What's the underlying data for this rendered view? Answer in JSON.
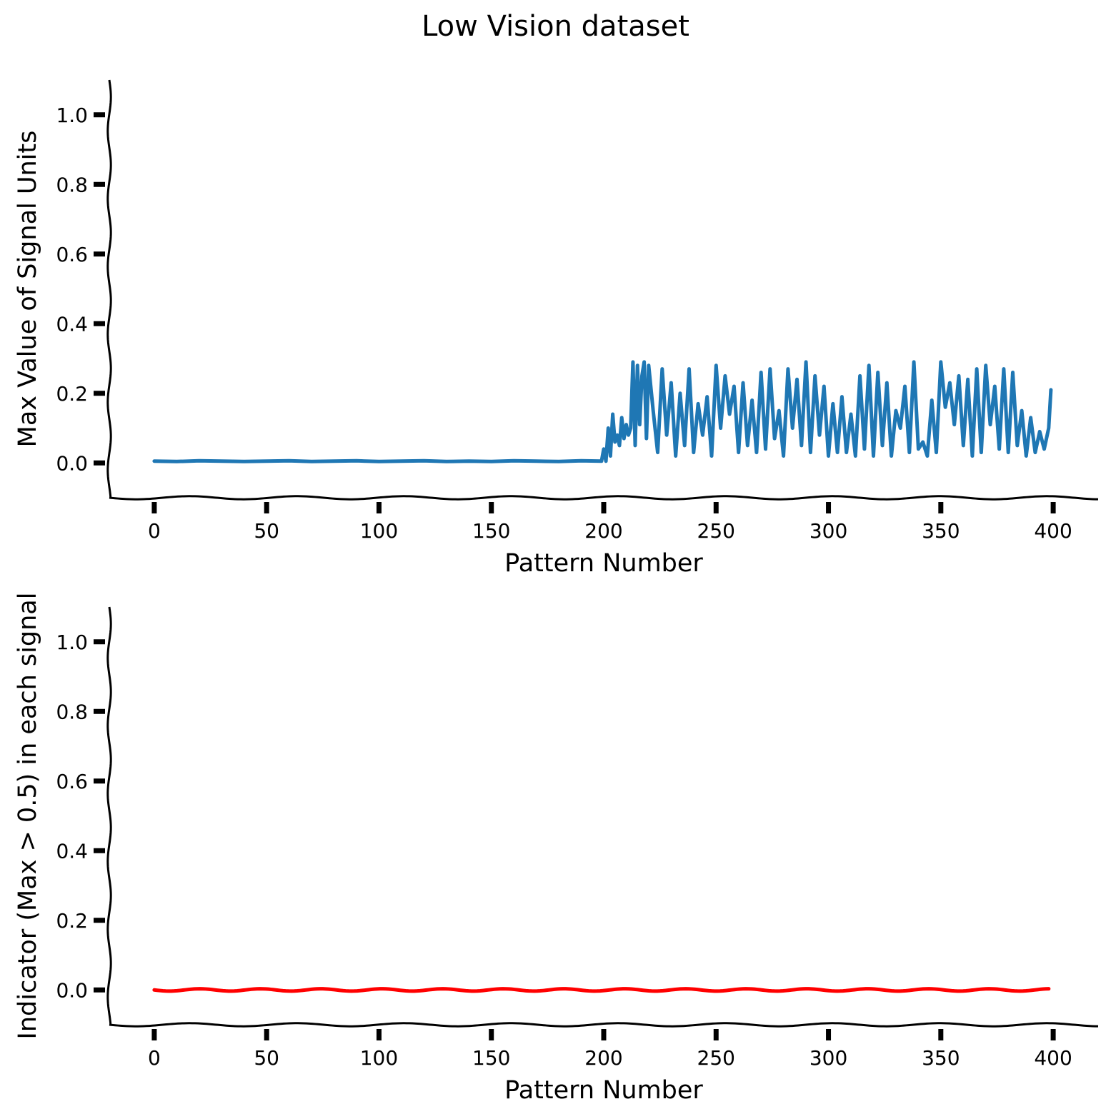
{
  "figure": {
    "title": "Low Vision dataset"
  },
  "colors": {
    "signal_line": "#1f77b4",
    "indicator_line": "#ff0000",
    "axes": "#000000"
  },
  "chart_data": [
    {
      "type": "line",
      "xlabel": "Pattern Number",
      "ylabel": "Max Value of Signal Units",
      "xlim": [
        -20,
        420
      ],
      "ylim": [
        -0.1,
        1.1
      ],
      "xticks": [
        "0",
        "50",
        "100",
        "150",
        "200",
        "250",
        "300",
        "350",
        "400"
      ],
      "yticks": [
        "0.0",
        "0.2",
        "0.4",
        "0.6",
        "0.8",
        "1.0"
      ],
      "grid": false,
      "legend": "none",
      "series": [
        {
          "color": "#1f77b4",
          "x": [
            0,
            10,
            20,
            30,
            40,
            50,
            60,
            70,
            80,
            90,
            100,
            110,
            120,
            130,
            140,
            150,
            160,
            170,
            180,
            190,
            199,
            200,
            201,
            202,
            203,
            204,
            205,
            206,
            207,
            208,
            209,
            210,
            211,
            212,
            213,
            214,
            215,
            216,
            217,
            218,
            219,
            220,
            222,
            224,
            226,
            228,
            230,
            232,
            234,
            236,
            238,
            240,
            242,
            244,
            246,
            248,
            250,
            252,
            254,
            256,
            258,
            260,
            262,
            264,
            266,
            268,
            270,
            272,
            274,
            276,
            278,
            280,
            282,
            284,
            286,
            288,
            290,
            292,
            294,
            296,
            298,
            300,
            302,
            304,
            306,
            308,
            310,
            312,
            314,
            316,
            318,
            320,
            322,
            324,
            326,
            328,
            330,
            332,
            334,
            336,
            338,
            340,
            342,
            344,
            346,
            348,
            350,
            352,
            354,
            356,
            358,
            360,
            362,
            364,
            366,
            368,
            370,
            372,
            374,
            376,
            378,
            380,
            382,
            384,
            386,
            388,
            390,
            392,
            394,
            396,
            398,
            399
          ],
          "y": [
            0.005,
            0.004,
            0.006,
            0.005,
            0.004,
            0.005,
            0.006,
            0.004,
            0.005,
            0.006,
            0.004,
            0.005,
            0.006,
            0.004,
            0.005,
            0.004,
            0.006,
            0.005,
            0.004,
            0.006,
            0.005,
            0.04,
            0.005,
            0.1,
            0.02,
            0.14,
            0.06,
            0.08,
            0.05,
            0.13,
            0.07,
            0.11,
            0.08,
            0.1,
            0.29,
            0.05,
            0.28,
            0.11,
            0.25,
            0.29,
            0.07,
            0.28,
            0.15,
            0.03,
            0.27,
            0.08,
            0.23,
            0.02,
            0.2,
            0.05,
            0.27,
            0.03,
            0.17,
            0.08,
            0.19,
            0.02,
            0.28,
            0.1,
            0.25,
            0.14,
            0.22,
            0.03,
            0.23,
            0.05,
            0.18,
            0.03,
            0.26,
            0.04,
            0.27,
            0.07,
            0.15,
            0.02,
            0.27,
            0.1,
            0.24,
            0.05,
            0.29,
            0.03,
            0.25,
            0.08,
            0.22,
            0.02,
            0.17,
            0.03,
            0.19,
            0.03,
            0.14,
            0.02,
            0.25,
            0.04,
            0.28,
            0.02,
            0.26,
            0.05,
            0.23,
            0.02,
            0.15,
            0.1,
            0.22,
            0.03,
            0.29,
            0.04,
            0.06,
            0.02,
            0.18,
            0.03,
            0.29,
            0.16,
            0.23,
            0.11,
            0.25,
            0.05,
            0.24,
            0.02,
            0.27,
            0.03,
            0.28,
            0.11,
            0.22,
            0.04,
            0.27,
            0.03,
            0.26,
            0.05,
            0.15,
            0.02,
            0.13,
            0.03,
            0.09,
            0.04,
            0.1,
            0.21
          ]
        }
      ]
    },
    {
      "type": "line",
      "xlabel": "Pattern Number",
      "ylabel": "Indicator (Max > 0.5) in each signal",
      "xlim": [
        -20,
        420
      ],
      "ylim": [
        -0.1,
        1.1
      ],
      "xticks": [
        "0",
        "50",
        "100",
        "150",
        "200",
        "250",
        "300",
        "350",
        "400"
      ],
      "yticks": [
        "0.0",
        "0.2",
        "0.4",
        "0.6",
        "0.8",
        "1.0"
      ],
      "grid": false,
      "legend": "none",
      "series": [
        {
          "color": "#ff0000",
          "x": [
            0,
            399
          ],
          "y": [
            0,
            0
          ]
        }
      ]
    }
  ]
}
